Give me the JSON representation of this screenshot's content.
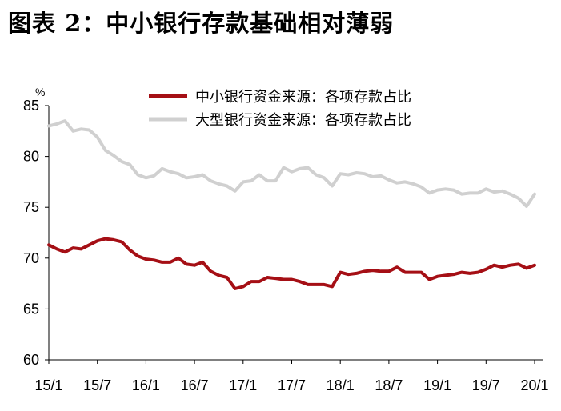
{
  "title": "图表 2：中小银行存款基础相对薄弱",
  "chart_data": {
    "type": "line",
    "yunit": "%",
    "ylim": [
      60,
      85
    ],
    "yticks": [
      60,
      65,
      70,
      75,
      80,
      85
    ],
    "grid": false,
    "legend_position": "top-center",
    "x_labels": [
      "15/1",
      "15/7",
      "16/1",
      "16/7",
      "17/1",
      "17/7",
      "18/1",
      "18/7",
      "19/1",
      "19/7",
      "20/1"
    ],
    "x_label_positions": [
      0,
      6,
      12,
      18,
      24,
      30,
      36,
      42,
      48,
      54,
      60
    ],
    "series": [
      {
        "name": "中小银行资金来源：各项存款占比",
        "color": "#a50f15",
        "values": [
          71.3,
          70.9,
          70.6,
          71.0,
          70.9,
          71.3,
          71.7,
          71.9,
          71.8,
          71.6,
          70.8,
          70.2,
          69.9,
          69.8,
          69.6,
          69.6,
          70.0,
          69.4,
          69.3,
          69.6,
          68.7,
          68.3,
          68.1,
          67.0,
          67.2,
          67.7,
          67.7,
          68.1,
          68.0,
          67.9,
          67.9,
          67.7,
          67.4,
          67.4,
          67.4,
          67.2,
          68.6,
          68.4,
          68.5,
          68.7,
          68.8,
          68.7,
          68.7,
          69.1,
          68.6,
          68.6,
          68.6,
          67.9,
          68.2,
          68.3,
          68.4,
          68.6,
          68.5,
          68.6,
          68.9,
          69.3,
          69.1,
          69.3,
          69.4,
          69.0,
          69.3
        ]
      },
      {
        "name": "大型银行资金来源：各项存款占比",
        "color": "#d0d0d0",
        "values": [
          83.0,
          83.2,
          83.5,
          82.5,
          82.7,
          82.6,
          81.9,
          80.6,
          80.1,
          79.5,
          79.2,
          78.2,
          77.9,
          78.1,
          78.8,
          78.5,
          78.3,
          77.9,
          78.0,
          78.2,
          77.6,
          77.3,
          77.1,
          76.6,
          77.5,
          77.6,
          78.2,
          77.6,
          77.6,
          78.9,
          78.5,
          78.8,
          78.9,
          78.2,
          77.9,
          77.1,
          78.3,
          78.2,
          78.4,
          78.3,
          78.0,
          78.1,
          77.7,
          77.4,
          77.5,
          77.3,
          77.0,
          76.4,
          76.7,
          76.8,
          76.7,
          76.3,
          76.4,
          76.4,
          76.8,
          76.5,
          76.6,
          76.3,
          75.9,
          75.1,
          76.3
        ]
      }
    ]
  }
}
